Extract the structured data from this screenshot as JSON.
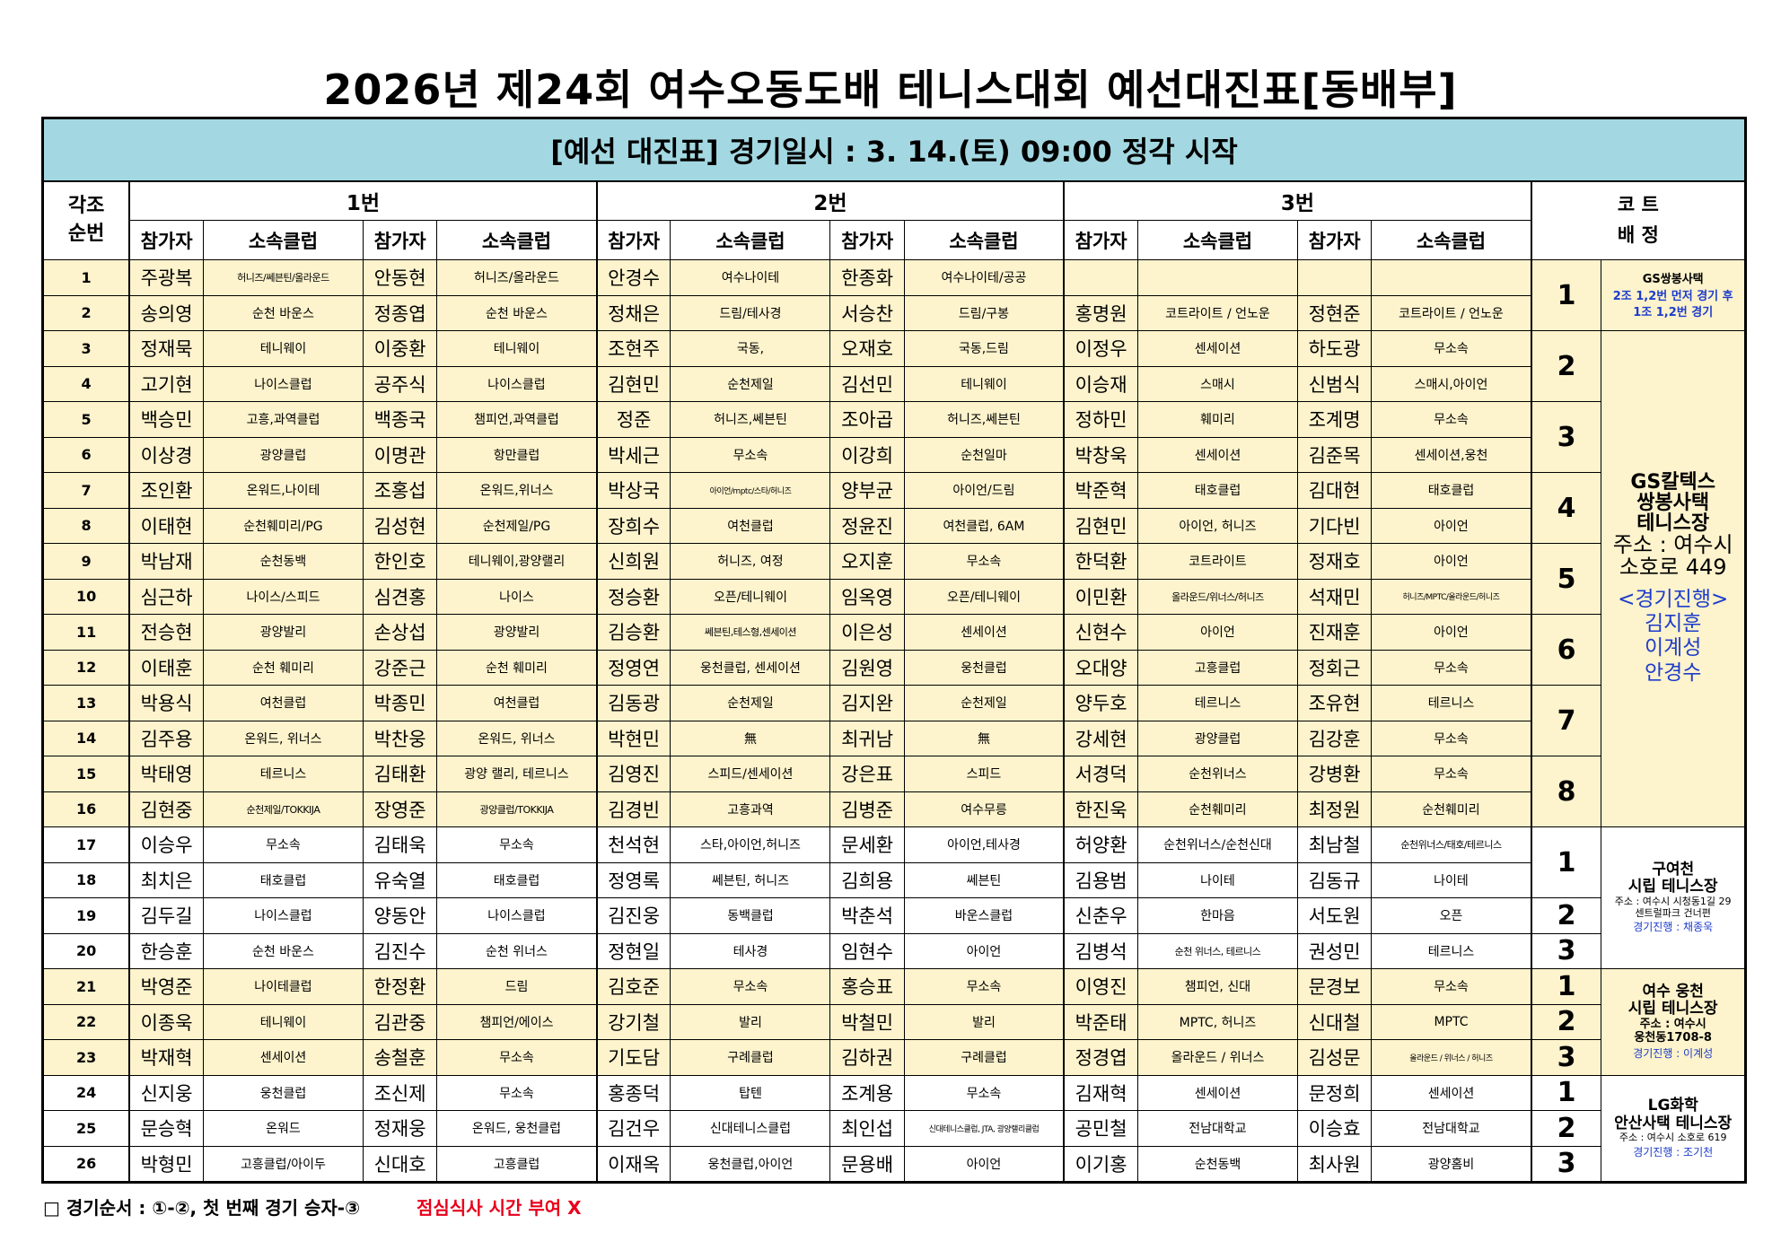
{
  "title": "2026년 제24회 여수오동도배 테니스대회 예선대진표[동배부]",
  "banner": "[예선 대진표] 경기일시 : 3. 14.(토) 09:00 정각 시작",
  "headers": {
    "order_line1": "각조",
    "order_line2": "순번",
    "match1": "1번",
    "match2": "2번",
    "match3": "3번",
    "court_line1": "코 트",
    "court_line2": "배 정",
    "participant": "참가자",
    "club": "소속클럽"
  },
  "rows": [
    {
      "no": "1",
      "p1": "주광복",
      "c1": "허니즈/쎄븐틴/올라운드",
      "p2": "안동현",
      "c2": "허니즈/올라운드",
      "p3": "안경수",
      "c3": "여수나이테",
      "p4": "한종화",
      "c4": "여수나이테/공공",
      "p5": "",
      "c5": "",
      "p6": "",
      "c6": ""
    },
    {
      "no": "2",
      "p1": "송의영",
      "c1": "순천 바운스",
      "p2": "정종엽",
      "c2": "순천 바운스",
      "p3": "정채은",
      "c3": "드림/테사경",
      "p4": "서승찬",
      "c4": "드림/구봉",
      "p5": "홍명원",
      "c5": "코트라이트 / 언노운",
      "p6": "정현준",
      "c6": "코트라이트 / 언노운"
    },
    {
      "no": "3",
      "p1": "정재묵",
      "c1": "테니웨이",
      "p2": "이중환",
      "c2": "테니웨이",
      "p3": "조현주",
      "c3": "국동,",
      "p4": "오재호",
      "c4": "국동,드림",
      "p5": "이정우",
      "c5": "센세이션",
      "p6": "하도광",
      "c6": "무소속"
    },
    {
      "no": "4",
      "p1": "고기현",
      "c1": "나이스클럽",
      "p2": "공주식",
      "c2": "나이스클럽",
      "p3": "김현민",
      "c3": "순천제일",
      "p4": "김선민",
      "c4": "테니웨이",
      "p5": "이승재",
      "c5": "스매시",
      "p6": "신범식",
      "c6": "스매시,아이언"
    },
    {
      "no": "5",
      "p1": "백승민",
      "c1": "고흥,과역클럽",
      "p2": "백종국",
      "c2": "챔피언,과역클럽",
      "p3": "정준",
      "c3": "허니즈,쎄븐틴",
      "p4": "조아곱",
      "c4": "허니즈,쎄븐틴",
      "p5": "정하민",
      "c5": "훼미리",
      "p6": "조계명",
      "c6": "무소속"
    },
    {
      "no": "6",
      "p1": "이상경",
      "c1": "광양클럽",
      "p2": "이명관",
      "c2": "항만클럽",
      "p3": "박세근",
      "c3": "무소속",
      "p4": "이강희",
      "c4": "순천일마",
      "p5": "박창욱",
      "c5": "센세이션",
      "p6": "김준목",
      "c6": "센세이션,웅천"
    },
    {
      "no": "7",
      "p1": "조인환",
      "c1": "온워드,나이테",
      "p2": "조홍섭",
      "c2": "온워드,위너스",
      "p3": "박상국",
      "c3": "아이언/mptc/스타/허니즈",
      "p4": "양부균",
      "c4": "아이언/드림",
      "p5": "박준혁",
      "c5": "태호클럽",
      "p6": "김대현",
      "c6": "태호클럽"
    },
    {
      "no": "8",
      "p1": "이태현",
      "c1": "순천훼미리/PG",
      "p2": "김성현",
      "c2": "순천제일/PG",
      "p3": "장희수",
      "c3": "여천클럽",
      "p4": "정윤진",
      "c4": "여천클럽, 6AM",
      "p5": "김현민",
      "c5": "아이언, 허니즈",
      "p6": "기다빈",
      "c6": "아이언"
    },
    {
      "no": "9",
      "p1": "박남재",
      "c1": "순천동백",
      "p2": "한인호",
      "c2": "테니웨이,광양랠리",
      "p3": "신희원",
      "c3": "허니즈, 여정",
      "p4": "오지훈",
      "c4": "무소속",
      "p5": "한덕환",
      "c5": "코트라이트",
      "p6": "정재호",
      "c6": "아이언"
    },
    {
      "no": "10",
      "p1": "심근하",
      "c1": "나이스/스피드",
      "p2": "심견홍",
      "c2": "나이스",
      "p3": "정승환",
      "c3": "오픈/테니웨이",
      "p4": "임옥영",
      "c4": "오픈/테니웨이",
      "p5": "이민환",
      "c5": "올라운드/위너스/허니즈",
      "p6": "석재민",
      "c6": "허니즈/MPTC/올라운드/허니즈"
    },
    {
      "no": "11",
      "p1": "전승현",
      "c1": "광양발리",
      "p2": "손상섭",
      "c2": "광양발리",
      "p3": "김승환",
      "c3": "쎄븐틴,테스형,센세이션",
      "p4": "이은성",
      "c4": "센세이션",
      "p5": "신현수",
      "c5": "아이언",
      "p6": "진재훈",
      "c6": "아이언"
    },
    {
      "no": "12",
      "p1": "이태훈",
      "c1": "순천 훼미리",
      "p2": "강준근",
      "c2": "순천 훼미리",
      "p3": "정영연",
      "c3": "웅천클럽, 센세이션",
      "p4": "김원영",
      "c4": "웅천클럽",
      "p5": "오대양",
      "c5": "고흥클럽",
      "p6": "정회근",
      "c6": "무소속"
    },
    {
      "no": "13",
      "p1": "박용식",
      "c1": "여천클럽",
      "p2": "박종민",
      "c2": "여천클럽",
      "p3": "김동광",
      "c3": "순천제일",
      "p4": "김지완",
      "c4": "순천제일",
      "p5": "양두호",
      "c5": "테르니스",
      "p6": "조유현",
      "c6": "테르니스"
    },
    {
      "no": "14",
      "p1": "김주용",
      "c1": "온워드, 위너스",
      "p2": "박찬웅",
      "c2": "온워드, 위너스",
      "p3": "박현민",
      "c3": "無",
      "p4": "최귀남",
      "c4": "無",
      "p5": "강세현",
      "c5": "광양클럽",
      "p6": "김강훈",
      "c6": "무소속"
    },
    {
      "no": "15",
      "p1": "박태영",
      "c1": "테르니스",
      "p2": "김태환",
      "c2": "광양 랠리, 테르니스",
      "p3": "김영진",
      "c3": "스피드/센세이션",
      "p4": "강은표",
      "c4": "스피드",
      "p5": "서경덕",
      "c5": "순천위너스",
      "p6": "강병환",
      "c6": "무소속"
    },
    {
      "no": "16",
      "p1": "김현중",
      "c1": "순천제일/TOKKIJA",
      "p2": "장영준",
      "c2": "광양클럽/TOKKIJA",
      "p3": "김경빈",
      "c3": "고흥과역",
      "p4": "김병준",
      "c4": "여수무릉",
      "p5": "한진욱",
      "c5": "순천훼미리",
      "p6": "최정원",
      "c6": "순천훼미리"
    },
    {
      "no": "17",
      "p1": "이승우",
      "c1": "무소속",
      "p2": "김태욱",
      "c2": "무소속",
      "p3": "천석현",
      "c3": "스타,아이언,허니즈",
      "p4": "문세환",
      "c4": "아이언,테사경",
      "p5": "허양환",
      "c5": "순천위너스/순천신대",
      "p6": "최남철",
      "c6": "순천위너스/태호/테르니스"
    },
    {
      "no": "18",
      "p1": "최치은",
      "c1": "태호클럽",
      "p2": "유숙열",
      "c2": "태호클럽",
      "p3": "정영록",
      "c3": "쎄븐틴, 허니즈",
      "p4": "김희용",
      "c4": "쎄븐틴",
      "p5": "김용범",
      "c5": "나이테",
      "p6": "김동규",
      "c6": "나이테"
    },
    {
      "no": "19",
      "p1": "김두길",
      "c1": "나이스클럽",
      "p2": "양동안",
      "c2": "나이스클럽",
      "p3": "김진웅",
      "c3": "동백클럽",
      "p4": "박춘석",
      "c4": "바운스클럽",
      "p5": "신춘우",
      "c5": "한마음",
      "p6": "서도원",
      "c6": "오픈"
    },
    {
      "no": "20",
      "p1": "한승훈",
      "c1": "순천 바운스",
      "p2": "김진수",
      "c2": "순천 위너스",
      "p3": "정현일",
      "c3": "테사경",
      "p4": "임현수",
      "c4": "아이언",
      "p5": "김병석",
      "c5": "순천 위너스, 테르니스",
      "p6": "권성민",
      "c6": "테르니스"
    },
    {
      "no": "21",
      "p1": "박영준",
      "c1": "나이테클럽",
      "p2": "한정환",
      "c2": "드림",
      "p3": "김호준",
      "c3": "무소속",
      "p4": "홍승표",
      "c4": "무소속",
      "p5": "이영진",
      "c5": "챔피언, 신대",
      "p6": "문경보",
      "c6": "무소속"
    },
    {
      "no": "22",
      "p1": "이종욱",
      "c1": "테니웨이",
      "p2": "김관중",
      "c2": "챔피언/에이스",
      "p3": "강기철",
      "c3": "발리",
      "p4": "박철민",
      "c4": "발리",
      "p5": "박준태",
      "c5": "MPTC, 허니즈",
      "p6": "신대철",
      "c6": "MPTC"
    },
    {
      "no": "23",
      "p1": "박재혁",
      "c1": "센세이션",
      "p2": "송철훈",
      "c2": "무소속",
      "p3": "기도담",
      "c3": "구례클럽",
      "p4": "김하권",
      "c4": "구례클럽",
      "p5": "정경엽",
      "c5": "올라운드 / 위너스",
      "p6": "김성문",
      "c6": "올라운드 / 위너스 / 허니즈"
    },
    {
      "no": "24",
      "p1": "신지웅",
      "c1": "웅천클럽",
      "p2": "조신제",
      "c2": "무소속",
      "p3": "홍종덕",
      "c3": "탑텐",
      "p4": "조계용",
      "c4": "무소속",
      "p5": "김재혁",
      "c5": "센세이션",
      "p6": "문정희",
      "c6": "센세이션"
    },
    {
      "no": "25",
      "p1": "문승혁",
      "c1": "온워드",
      "p2": "정재웅",
      "c2": "온워드, 웅천클럽",
      "p3": "김건우",
      "c3": "신대테니스클럽",
      "p4": "최인섭",
      "c4": "신대테니스클럽, JTA, 광양랠리클럽",
      "p5": "공민철",
      "c5": "전남대학교",
      "p6": "이승효",
      "c6": "전남대학교"
    },
    {
      "no": "26",
      "p1": "박형민",
      "c1": "고흥클럽/아이두",
      "p2": "신대호",
      "c2": "고흥클럽",
      "p3": "이재옥",
      "c3": "웅천클럽,아이언",
      "p4": "문용배",
      "c4": "아이언",
      "p5": "이기홍",
      "c5": "순천동백",
      "p6": "최사원",
      "c6": "광양홈비"
    }
  ],
  "courts": {
    "c1": "1",
    "c2": "2",
    "c3": "3",
    "c4": "4",
    "c5": "5",
    "c6": "6",
    "c7": "7",
    "c8": "8",
    "d1": "1",
    "d2": "2",
    "d3": "3",
    "e1": "1",
    "e2": "2",
    "e3": "3",
    "f1": "1",
    "f2": "2",
    "f3": "3"
  },
  "venues": {
    "gs_note_name": "GS쌍봉사택",
    "gs_note_line1": "2조 1,2번 먼저 경기 후",
    "gs_note_line2": "1조 1,2번 경기",
    "gs_name1": "GS칼텍스",
    "gs_name2": "쌍봉사택",
    "gs_name3": "테니스장",
    "gs_addr1": "주소 : 여수시",
    "gs_addr2": "소호로 449",
    "gs_progress_label": "<경기진행>",
    "gs_staff1": "김지훈",
    "gs_staff2": "이계성",
    "gs_staff3": "안경수",
    "gy_name1": "구여천",
    "gy_name2": "시립 테니스장",
    "gy_addr1": "주소 : 여수시 시청동1길 29",
    "gy_addr2": "센트럴파크 건너편",
    "gy_staff": "경기진행 : 채종욱",
    "ws_name1": "여수 웅천",
    "ws_name2": "시립 테니스장",
    "ws_addr1": "주소 : 여수시",
    "ws_addr2": "웅천동1708-8",
    "ws_staff": "경기진행 : 이계성",
    "lg_name1": "LG화학",
    "lg_name2": "안산사택 테니스장",
    "lg_addr": "주소 : 여수시 소호로 619",
    "lg_staff": "경기진행 : 조기천"
  },
  "footer": {
    "order_label": "□ 경기순서 : ①-②, 첫 번째 경기 승자-③",
    "lunch_note": "점심식사 시간 부여 X"
  },
  "colors": {
    "banner_bg": "#a3d8e2",
    "yellow_bg": "#fdf3cc",
    "staff_blue": "#1d3ccc",
    "warning_red": "#e8001b"
  }
}
